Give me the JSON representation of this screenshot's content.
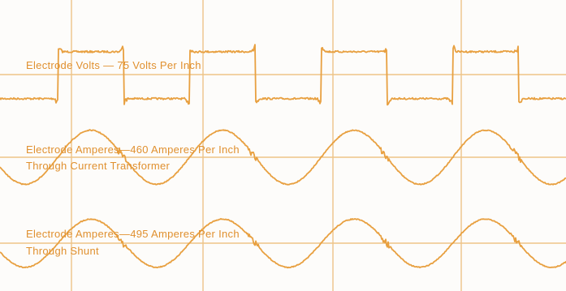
{
  "chart_data": {
    "type": "line",
    "title": "",
    "xlabel": "",
    "ylabel": "",
    "grid": true,
    "colors": {
      "trace": "#e8a040",
      "grid": "#eec488",
      "text": "#e0902f",
      "background": "#fdfcfa"
    },
    "series": [
      {
        "name": "Electrode Volts",
        "label": "Electrode Volts — 75 Volts Per Inch",
        "waveform": "square",
        "cycles": 4.3,
        "phase": 0.56,
        "amplitude_in": 0.33
      },
      {
        "name": "Electrode Amperes (current transformer)",
        "label": "Electrode Amperes—460 Amperes Per Inch",
        "sublabel": "Through Current Transformer",
        "waveform": "sine",
        "cycles": 4.3,
        "phase": 0.56,
        "amplitude_in": 0.37
      },
      {
        "name": "Electrode Amperes (shunt)",
        "label": "Electrode Amperes—495 Amperes Per Inch",
        "sublabel": "Through Shunt",
        "waveform": "sine",
        "cycles": 4.3,
        "phase": 0.56,
        "amplitude_in": 0.33
      }
    ]
  }
}
